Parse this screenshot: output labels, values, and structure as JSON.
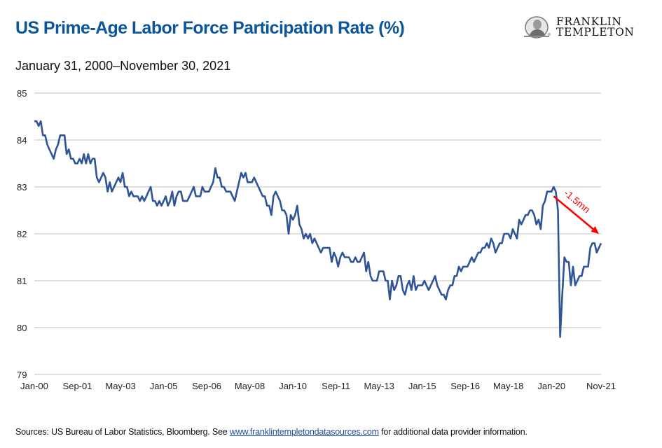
{
  "header": {
    "title": "US Prime-Age Labor Force Participation Rate (%)",
    "subtitle": "January 31, 2000–November 30, 2021"
  },
  "logo": {
    "line1": "FRANKLIN",
    "line2": "TEMPLETON",
    "icon": "benjamin-franklin-medallion-icon"
  },
  "footer": {
    "source_prefix": "Sources: US Bureau of Labor Statistics, Bloomberg. See ",
    "source_link": "www.franklintempletondatasources.com",
    "source_suffix": " for additional data provider information."
  },
  "colors": {
    "title": "#0a5699",
    "line": "#2f5597",
    "annotation": "#ff0000",
    "grid": "#bfbfbf"
  },
  "chart_data": {
    "type": "line",
    "title": "US Prime-Age Labor Force Participation Rate (%)",
    "subtitle": "January 31, 2000–November 30, 2021",
    "xlabel": "",
    "ylabel": "",
    "ylim": [
      79,
      85
    ],
    "yticks": [
      "85",
      "84",
      "83",
      "82",
      "81",
      "80",
      "79"
    ],
    "xticks": [
      "Jan-00",
      "Sep-01",
      "May-03",
      "Jan-05",
      "Sep-06",
      "May-08",
      "Jan-10",
      "Sep-11",
      "May-13",
      "Jan-15",
      "Sep-16",
      "May-18",
      "Jan-20",
      "Nov-21"
    ],
    "x_start": "Jan-2000",
    "x_end": "Nov-2021",
    "frequency": "monthly",
    "grid": true,
    "legend": "none",
    "annotation": {
      "text": "-1.5mn",
      "from": {
        "month_index": 241,
        "value": 82.8
      },
      "to": {
        "month_index": 262,
        "value": 82.0
      }
    },
    "series": [
      {
        "name": "US Prime-Age Labor Force Participation Rate",
        "values": [
          84.4,
          84.4,
          84.3,
          84.4,
          84.1,
          84.1,
          83.9,
          83.8,
          83.7,
          83.6,
          83.8,
          83.9,
          84.1,
          84.1,
          84.1,
          83.7,
          83.8,
          83.6,
          83.6,
          83.5,
          83.5,
          83.6,
          83.5,
          83.7,
          83.5,
          83.7,
          83.5,
          83.6,
          83.6,
          83.2,
          83.1,
          83.2,
          83.3,
          83.2,
          82.9,
          83.1,
          82.9,
          83.0,
          83.1,
          83.2,
          83.1,
          83.3,
          83.0,
          83.0,
          82.8,
          82.9,
          82.8,
          82.8,
          82.8,
          82.7,
          82.8,
          82.7,
          82.8,
          82.9,
          83.0,
          82.7,
          82.7,
          82.6,
          82.7,
          82.6,
          82.7,
          82.8,
          82.6,
          82.7,
          82.9,
          82.6,
          82.8,
          82.9,
          82.9,
          82.7,
          82.7,
          82.7,
          82.8,
          82.9,
          83.0,
          82.8,
          82.8,
          82.8,
          83.0,
          82.9,
          82.9,
          82.9,
          83.0,
          83.1,
          83.4,
          83.2,
          83.2,
          83.0,
          83.0,
          82.9,
          82.9,
          82.9,
          82.8,
          82.7,
          82.9,
          83.1,
          83.3,
          83.2,
          83.3,
          83.1,
          83.1,
          83.1,
          83.2,
          83.1,
          83.0,
          82.9,
          82.8,
          82.8,
          82.6,
          82.6,
          82.4,
          82.8,
          82.9,
          82.8,
          82.7,
          82.5,
          82.5,
          82.4,
          82.0,
          82.4,
          82.3,
          82.4,
          82.6,
          82.2,
          82.1,
          81.9,
          82.0,
          81.9,
          82.0,
          81.8,
          81.9,
          81.8,
          81.7,
          81.6,
          81.7,
          81.7,
          81.7,
          81.7,
          81.4,
          81.6,
          81.5,
          81.3,
          81.5,
          81.6,
          81.5,
          81.5,
          81.5,
          81.4,
          81.4,
          81.5,
          81.4,
          81.4,
          81.5,
          81.6,
          81.2,
          81.4,
          81.1,
          81.0,
          81.0,
          81.0,
          81.2,
          81.2,
          81.2,
          81.0,
          81.0,
          80.6,
          81.0,
          80.8,
          80.9,
          81.1,
          81.1,
          80.8,
          80.7,
          80.9,
          81.0,
          80.8,
          81.1,
          80.8,
          80.9,
          80.9,
          80.9,
          81.0,
          80.9,
          80.8,
          80.9,
          81.0,
          81.1,
          80.9,
          80.8,
          80.7,
          80.7,
          80.6,
          80.8,
          80.9,
          80.9,
          81.1,
          81.1,
          81.3,
          81.2,
          81.3,
          81.3,
          81.3,
          81.4,
          81.5,
          81.4,
          81.5,
          81.6,
          81.6,
          81.7,
          81.7,
          81.8,
          81.7,
          81.9,
          81.8,
          81.6,
          81.7,
          81.8,
          81.8,
          82.0,
          82.0,
          82.0,
          81.9,
          82.1,
          82.0,
          81.9,
          82.3,
          82.2,
          82.3,
          82.4,
          82.4,
          82.5,
          82.5,
          82.4,
          82.2,
          82.3,
          82.1,
          82.6,
          82.7,
          82.9,
          82.9,
          82.9,
          83.0,
          82.9,
          82.5,
          79.8,
          80.7,
          81.5,
          81.4,
          81.4,
          80.9,
          81.3,
          80.9,
          81.0,
          81.1,
          81.1,
          81.3,
          81.3,
          81.3,
          81.7,
          81.8,
          81.8,
          81.6,
          81.7,
          81.8
        ]
      }
    ]
  }
}
